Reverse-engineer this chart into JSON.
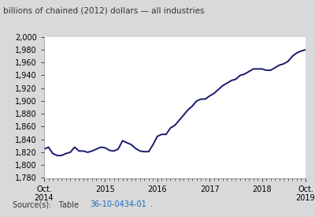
{
  "title": "billions of chained (2012) dollars — all industries",
  "source_text": "Source(s):   Table 36-10-0434-01.",
  "source_link": "36-10-0434-01",
  "line_color": "#1a1a6e",
  "line_width": 1.4,
  "bg_color": "#d9d9d9",
  "plot_bg_color": "#ffffff",
  "ylim": [
    1780,
    2000
  ],
  "yticks": [
    1780,
    1800,
    1820,
    1840,
    1860,
    1880,
    1900,
    1920,
    1940,
    1960,
    1980,
    2000
  ],
  "xtick_labels": [
    "Oct.\n2014",
    "2015",
    "2016",
    "2017",
    "2018",
    "Oct.\n2019"
  ],
  "xtick_positions": [
    0,
    14,
    26,
    38,
    50,
    60
  ],
  "data_x": [
    0,
    1,
    2,
    3,
    4,
    5,
    6,
    7,
    8,
    9,
    10,
    11,
    12,
    13,
    14,
    15,
    16,
    17,
    18,
    19,
    20,
    21,
    22,
    23,
    24,
    25,
    26,
    27,
    28,
    29,
    30,
    31,
    32,
    33,
    34,
    35,
    36,
    37,
    38,
    39,
    40,
    41,
    42,
    43,
    44,
    45,
    46,
    47,
    48,
    49,
    50,
    51,
    52,
    53,
    54,
    55,
    56,
    57,
    58,
    59,
    60
  ],
  "data_y": [
    1825,
    1828,
    1818,
    1815,
    1815,
    1818,
    1820,
    1828,
    1822,
    1822,
    1820,
    1822,
    1825,
    1828,
    1827,
    1823,
    1822,
    1825,
    1838,
    1835,
    1832,
    1826,
    1822,
    1821,
    1821,
    1832,
    1845,
    1848,
    1848,
    1858,
    1862,
    1870,
    1878,
    1886,
    1892,
    1900,
    1903,
    1903,
    1908,
    1912,
    1918,
    1924,
    1928,
    1932,
    1934,
    1940,
    1942,
    1946,
    1950,
    1950,
    1950,
    1948,
    1948,
    1952,
    1956,
    1958,
    1962,
    1970,
    1975,
    1978,
    1980
  ]
}
